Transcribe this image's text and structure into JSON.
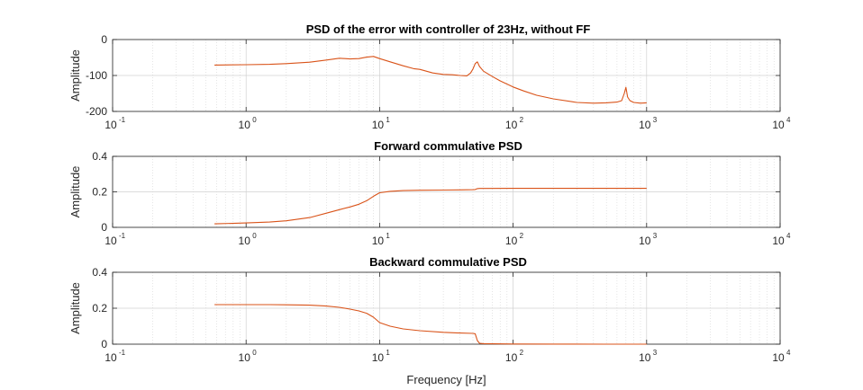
{
  "figure": {
    "xlabel": "Frequency [Hz]",
    "line_color": "#D95319",
    "grid": true
  },
  "chart_data": [
    {
      "type": "line",
      "title": "PSD of the error with controller of 23Hz, without FF",
      "xlabel": "",
      "ylabel": "Amplitude",
      "xscale": "log",
      "xlim": [
        0.1,
        10000
      ],
      "ylim": [
        -200,
        0
      ],
      "yticks": [
        "0",
        "-100",
        "-200"
      ],
      "ytick_values": [
        0,
        -100,
        -200
      ],
      "xticks": [
        {
          "base": "10",
          "exp": "-1"
        },
        {
          "base": "10",
          "exp": "0"
        },
        {
          "base": "10",
          "exp": "1"
        },
        {
          "base": "10",
          "exp": "2"
        },
        {
          "base": "10",
          "exp": "3"
        },
        {
          "base": "10",
          "exp": "4"
        }
      ],
      "xtick_values": [
        0.1,
        1,
        10,
        100,
        1000,
        10000
      ],
      "series": [
        {
          "x": [
            0.58,
            1,
            1.5,
            2,
            3,
            4,
            5,
            6,
            7,
            8,
            9,
            10,
            12,
            15,
            18,
            20,
            25,
            30,
            35,
            40,
            45,
            48,
            50,
            52,
            54,
            56,
            60,
            70,
            80,
            100,
            120,
            150,
            200,
            300,
            400,
            500,
            600,
            650,
            680,
            700,
            720,
            750,
            800,
            900,
            1000
          ],
          "y": [
            -71,
            -70,
            -69,
            -67,
            -63,
            -57,
            -52,
            -54,
            -53,
            -49,
            -47,
            -53,
            -62,
            -73,
            -81,
            -83,
            -93,
            -97,
            -98,
            -100,
            -101,
            -93,
            -82,
            -67,
            -62,
            -75,
            -88,
            -103,
            -115,
            -132,
            -143,
            -155,
            -165,
            -175,
            -177,
            -176,
            -174,
            -170,
            -150,
            -133,
            -160,
            -170,
            -175,
            -177,
            -176
          ]
        }
      ]
    },
    {
      "type": "line",
      "title": "Forward commulative PSD",
      "xlabel": "",
      "ylabel": "Amplitude",
      "xscale": "log",
      "xlim": [
        0.1,
        10000
      ],
      "ylim": [
        0,
        0.4
      ],
      "yticks": [
        "0.4",
        "0.2",
        "0"
      ],
      "ytick_values": [
        0.4,
        0.2,
        0
      ],
      "xticks": [
        {
          "base": "10",
          "exp": "-1"
        },
        {
          "base": "10",
          "exp": "0"
        },
        {
          "base": "10",
          "exp": "1"
        },
        {
          "base": "10",
          "exp": "2"
        },
        {
          "base": "10",
          "exp": "3"
        },
        {
          "base": "10",
          "exp": "4"
        }
      ],
      "xtick_values": [
        0.1,
        1,
        10,
        100,
        1000,
        10000
      ],
      "series": [
        {
          "x": [
            0.58,
            1,
            1.5,
            2,
            3,
            4,
            5,
            6,
            7,
            8,
            9,
            10,
            12,
            15,
            20,
            30,
            40,
            50,
            52,
            54,
            56,
            60,
            100,
            200,
            500,
            1000
          ],
          "y": [
            0.02,
            0.025,
            0.03,
            0.037,
            0.055,
            0.08,
            0.1,
            0.115,
            0.13,
            0.15,
            0.175,
            0.195,
            0.203,
            0.207,
            0.209,
            0.21,
            0.211,
            0.212,
            0.213,
            0.218,
            0.219,
            0.219,
            0.22,
            0.22,
            0.22,
            0.22
          ]
        }
      ]
    },
    {
      "type": "line",
      "title": "Backward commulative PSD",
      "xlabel": "Frequency [Hz]",
      "ylabel": "Amplitude",
      "xscale": "log",
      "xlim": [
        0.1,
        10000
      ],
      "ylim": [
        0,
        0.4
      ],
      "yticks": [
        "0.4",
        "0.2",
        "0"
      ],
      "ytick_values": [
        0.4,
        0.2,
        0
      ],
      "xticks": [
        {
          "base": "10",
          "exp": "-1"
        },
        {
          "base": "10",
          "exp": "0"
        },
        {
          "base": "10",
          "exp": "1"
        },
        {
          "base": "10",
          "exp": "2"
        },
        {
          "base": "10",
          "exp": "3"
        },
        {
          "base": "10",
          "exp": "4"
        }
      ],
      "xtick_values": [
        0.1,
        1,
        10,
        100,
        1000,
        10000
      ],
      "series": [
        {
          "x": [
            0.58,
            1,
            1.5,
            2,
            3,
            4,
            5,
            6,
            7,
            8,
            9,
            10,
            12,
            15,
            20,
            30,
            40,
            50,
            52,
            54,
            56,
            60,
            100,
            200,
            500,
            1000
          ],
          "y": [
            0.22,
            0.22,
            0.22,
            0.219,
            0.217,
            0.212,
            0.205,
            0.195,
            0.185,
            0.172,
            0.15,
            0.12,
            0.1,
            0.085,
            0.075,
            0.066,
            0.062,
            0.06,
            0.058,
            0.02,
            0.005,
            0.003,
            0.001,
            0.0005,
            0.0002,
            0.0
          ]
        }
      ]
    }
  ]
}
